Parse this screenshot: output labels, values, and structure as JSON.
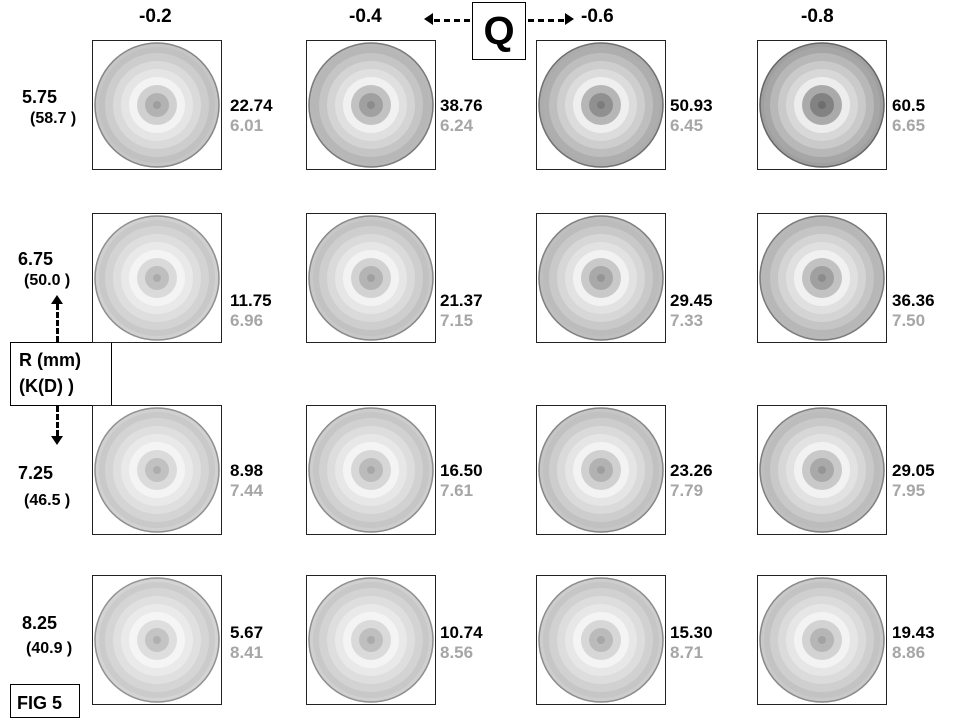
{
  "figure_label": "FIG 5",
  "q_axis": {
    "symbol": "Q",
    "columns": [
      "-0.2",
      "-0.4",
      "-0.6",
      "-0.8"
    ]
  },
  "r_axis": {
    "line1": "R (mm)",
    "line2": "(K(D) )"
  },
  "rows": [
    {
      "r": "5.75",
      "k": "(58.7 )"
    },
    {
      "r": "6.75",
      "k": "(50.0 )"
    },
    {
      "r": "7.25",
      "k": "(46.5 )"
    },
    {
      "r": "8.25",
      "k": "(40.9 )"
    }
  ],
  "cells": [
    [
      {
        "top": "22.74",
        "bottom": "6.01",
        "darkness": 0.25
      },
      {
        "top": "38.76",
        "bottom": "6.24",
        "darkness": 0.45
      },
      {
        "top": "50.93",
        "bottom": "6.45",
        "darkness": 0.62
      },
      {
        "top": "60.5",
        "bottom": "6.65",
        "darkness": 0.78
      }
    ],
    [
      {
        "top": "11.75",
        "bottom": "6.96",
        "darkness": 0.1
      },
      {
        "top": "21.37",
        "bottom": "7.15",
        "darkness": 0.22
      },
      {
        "top": "29.45",
        "bottom": "7.33",
        "darkness": 0.35
      },
      {
        "top": "36.36",
        "bottom": "7.50",
        "darkness": 0.45
      }
    ],
    [
      {
        "top": "8.98",
        "bottom": "7.44",
        "darkness": 0.08
      },
      {
        "top": "16.50",
        "bottom": "7.61",
        "darkness": 0.15
      },
      {
        "top": "23.26",
        "bottom": "7.79",
        "darkness": 0.25
      },
      {
        "top": "29.05",
        "bottom": "7.95",
        "darkness": 0.35
      }
    ],
    [
      {
        "top": "5.67",
        "bottom": "8.41",
        "darkness": 0.05
      },
      {
        "top": "10.74",
        "bottom": "8.56",
        "darkness": 0.1
      },
      {
        "top": "15.30",
        "bottom": "8.71",
        "darkness": 0.15
      },
      {
        "top": "19.43",
        "bottom": "8.86",
        "darkness": 0.2
      }
    ]
  ]
}
